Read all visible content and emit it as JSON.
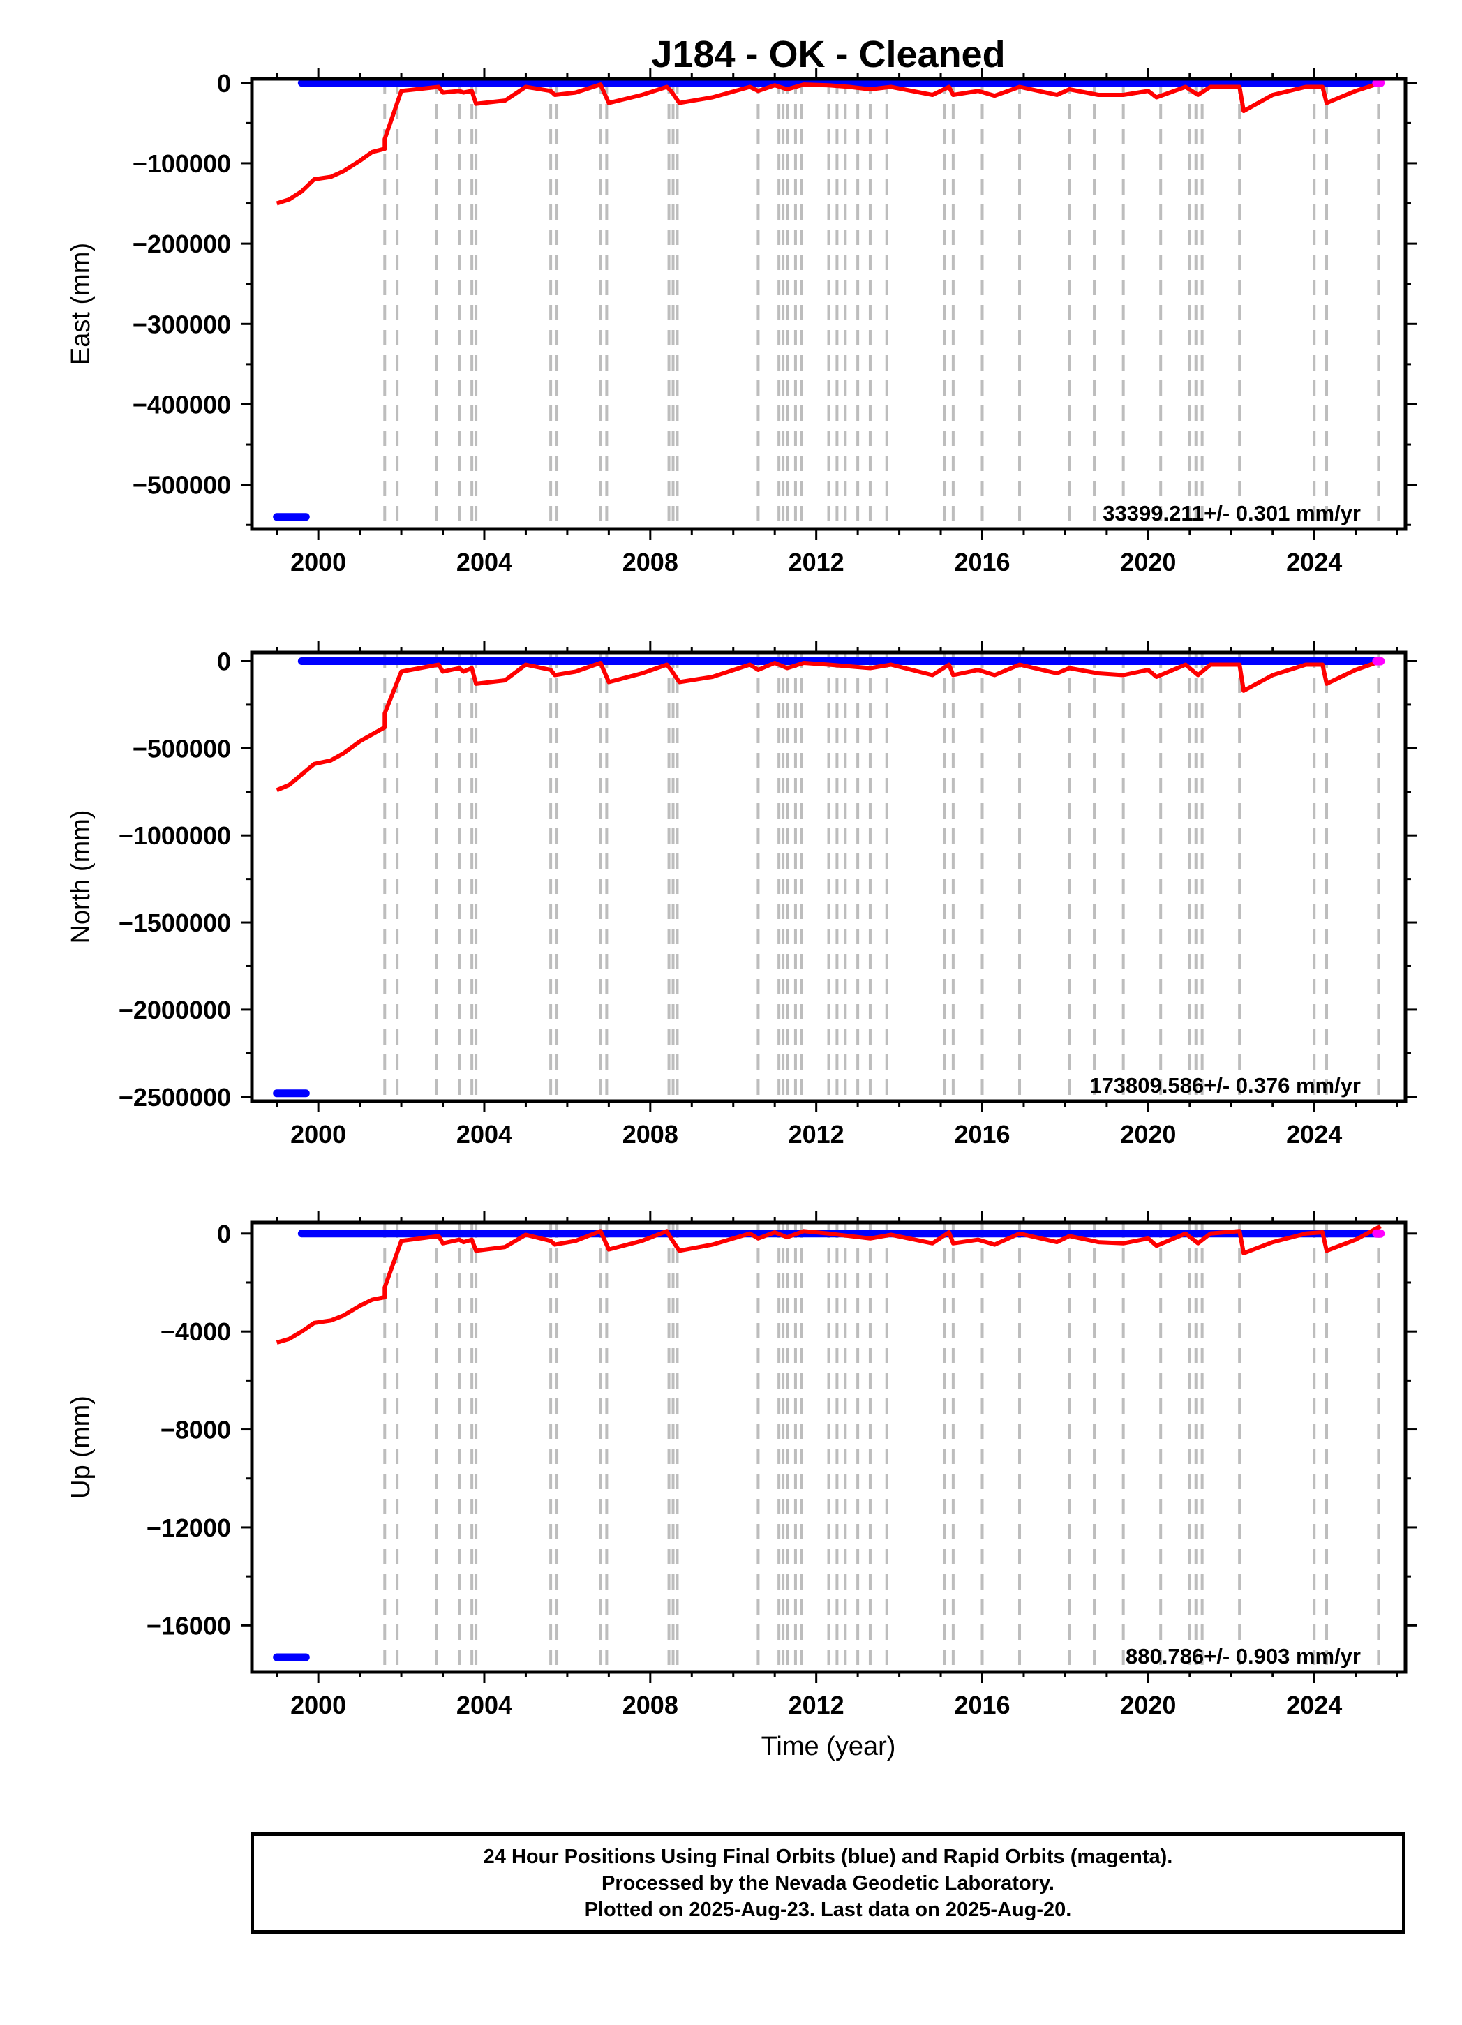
{
  "title": "J184  - OK - Cleaned",
  "x_axis_label": "Time (year)",
  "caption": [
    "24 Hour Positions Using Final Orbits (blue) and Rapid Orbits (magenta).",
    "Processed by the Nevada Geodetic Laboratory.",
    "Plotted on 2025-Aug-23. Last data on 2025-Aug-20."
  ],
  "colors": {
    "final_orbits": "#0000ff",
    "rapid_orbits": "#ff00ff",
    "model_fit": "#ff0000",
    "equipment_change_lines": "#bdbdbd"
  },
  "chart_data": [
    {
      "type": "line",
      "panel": "East",
      "ylabel": "East (mm)",
      "xlim": [
        1998.4,
        2026.2
      ],
      "ylim": [
        -555000,
        5000
      ],
      "xticks": [
        2000,
        2004,
        2008,
        2012,
        2016,
        2020,
        2024
      ],
      "yticks": [
        0,
        -100000,
        -200000,
        -300000,
        -400000,
        -500000
      ],
      "ytick_labels": [
        "0",
        "−100000",
        "−200000",
        "−300000",
        "−400000",
        "−500000"
      ],
      "annotation": "33399.211+/- 0.301 mm/yr",
      "final_segments": [
        {
          "x": [
            1999.0,
            1999.7
          ],
          "y": [
            -540000,
            -540000
          ]
        },
        {
          "x": [
            1999.6,
            2025.45
          ],
          "y": [
            0,
            0
          ]
        }
      ],
      "rapid_points": {
        "x": [
          2025.5,
          2025.55,
          2025.6
        ],
        "y": [
          0,
          0,
          0
        ]
      },
      "model_fit": {
        "x": [
          1999.0,
          1999.3,
          1999.6,
          1999.9,
          2000.3,
          2000.6,
          2001.0,
          2001.3,
          2001.6,
          2001.6,
          2002.0,
          2002.9,
          2003.0,
          2003.4,
          2003.5,
          2003.7,
          2003.8,
          2004.5,
          2005.0,
          2005.6,
          2005.7,
          2006.2,
          2006.8,
          2007.0,
          2007.8,
          2008.4,
          2008.5,
          2008.7,
          2009.5,
          2010.4,
          2010.6,
          2011.0,
          2011.3,
          2011.7,
          2012.3,
          2012.8,
          2013.3,
          2013.8,
          2014.8,
          2015.2,
          2015.3,
          2015.9,
          2016.3,
          2016.9,
          2017.8,
          2018.1,
          2018.8,
          2019.4,
          2020.0,
          2020.2,
          2020.9,
          2021.2,
          2021.5,
          2022.2,
          2022.3,
          2023.0,
          2023.8,
          2024.2,
          2024.3,
          2025.0,
          2025.6
        ],
        "y": [
          -150000,
          -145000,
          -135000,
          -120000,
          -117000,
          -110000,
          -97000,
          -86000,
          -82000,
          -70000,
          -10000,
          -5000,
          -12000,
          -10000,
          -12000,
          -10000,
          -26000,
          -22000,
          -5000,
          -10000,
          -15000,
          -12000,
          -2000,
          -25000,
          -15000,
          -5000,
          -10000,
          -25000,
          -18000,
          -5000,
          -10000,
          -3000,
          -8000,
          -2000,
          -3000,
          -5000,
          -8000,
          -5000,
          -15000,
          -5000,
          -15000,
          -10000,
          -16000,
          -5000,
          -15000,
          -8000,
          -15000,
          -15000,
          -10000,
          -18000,
          -5000,
          -15000,
          -5000,
          -5000,
          -35000,
          -15000,
          -5000,
          -5000,
          -25000,
          -10000,
          0
        ]
      },
      "equipment_change_years": [
        2001.6,
        2001.9,
        2002.85,
        2003.4,
        2003.7,
        2003.8,
        2005.6,
        2005.75,
        2006.8,
        2006.95,
        2008.45,
        2008.55,
        2008.65,
        2010.6,
        2011.1,
        2011.2,
        2011.3,
        2011.5,
        2011.65,
        2012.3,
        2012.5,
        2012.7,
        2013.0,
        2013.3,
        2013.7,
        2015.1,
        2015.3,
        2016.0,
        2016.9,
        2018.1,
        2018.7,
        2019.4,
        2020.3,
        2021.0,
        2021.15,
        2021.3,
        2022.2,
        2024.0,
        2024.3,
        2025.55
      ]
    },
    {
      "type": "line",
      "panel": "North",
      "ylabel": "North (mm)",
      "xlim": [
        1998.4,
        2026.2
      ],
      "ylim": [
        -2525000,
        50000
      ],
      "xticks": [
        2000,
        2004,
        2008,
        2012,
        2016,
        2020,
        2024
      ],
      "yticks": [
        0,
        -500000,
        -1000000,
        -1500000,
        -2000000,
        -2500000
      ],
      "ytick_labels": [
        "0",
        "−500000",
        "−1000000",
        "−1500000",
        "−2000000",
        "−2500000"
      ],
      "annotation": "173809.586+/- 0.376 mm/yr",
      "final_segments": [
        {
          "x": [
            1999.0,
            1999.7
          ],
          "y": [
            -2480000,
            -2480000
          ]
        },
        {
          "x": [
            1999.6,
            2025.45
          ],
          "y": [
            0,
            0
          ]
        }
      ],
      "rapid_points": {
        "x": [
          2025.5,
          2025.55,
          2025.6
        ],
        "y": [
          0,
          0,
          0
        ]
      },
      "model_fit": {
        "x": [
          1999.0,
          1999.3,
          1999.6,
          1999.9,
          2000.3,
          2000.6,
          2001.0,
          2001.3,
          2001.6,
          2001.6,
          2002.0,
          2002.9,
          2003.0,
          2003.4,
          2003.5,
          2003.7,
          2003.8,
          2004.5,
          2005.0,
          2005.6,
          2005.7,
          2006.2,
          2006.8,
          2007.0,
          2007.8,
          2008.4,
          2008.5,
          2008.7,
          2009.5,
          2010.4,
          2010.6,
          2011.0,
          2011.3,
          2011.7,
          2012.3,
          2012.8,
          2013.3,
          2013.8,
          2014.8,
          2015.2,
          2015.3,
          2015.9,
          2016.3,
          2016.9,
          2017.8,
          2018.1,
          2018.8,
          2019.4,
          2020.0,
          2020.2,
          2020.9,
          2021.2,
          2021.5,
          2022.2,
          2022.3,
          2023.0,
          2023.8,
          2024.2,
          2024.3,
          2025.0,
          2025.6
        ],
        "y": [
          -740000,
          -710000,
          -650000,
          -590000,
          -570000,
          -530000,
          -460000,
          -420000,
          -380000,
          -300000,
          -60000,
          -20000,
          -60000,
          -40000,
          -60000,
          -40000,
          -130000,
          -110000,
          -20000,
          -50000,
          -80000,
          -60000,
          -10000,
          -120000,
          -70000,
          -20000,
          -50000,
          -120000,
          -90000,
          -20000,
          -50000,
          -10000,
          -40000,
          -10000,
          -20000,
          -30000,
          -40000,
          -20000,
          -80000,
          -20000,
          -80000,
          -50000,
          -80000,
          -20000,
          -70000,
          -40000,
          -70000,
          -80000,
          -50000,
          -90000,
          -20000,
          -80000,
          -20000,
          -20000,
          -170000,
          -80000,
          -20000,
          -20000,
          -130000,
          -50000,
          0
        ]
      },
      "equipment_change_years": [
        2001.6,
        2001.9,
        2002.85,
        2003.4,
        2003.7,
        2003.8,
        2005.6,
        2005.75,
        2006.8,
        2006.95,
        2008.45,
        2008.55,
        2008.65,
        2010.6,
        2011.1,
        2011.2,
        2011.3,
        2011.5,
        2011.65,
        2012.3,
        2012.5,
        2012.7,
        2013.0,
        2013.3,
        2013.7,
        2015.1,
        2015.3,
        2016.0,
        2016.9,
        2018.1,
        2018.7,
        2019.4,
        2020.3,
        2021.0,
        2021.15,
        2021.3,
        2022.2,
        2024.0,
        2024.3,
        2025.55
      ]
    },
    {
      "type": "line",
      "panel": "Up",
      "ylabel": "Up (mm)",
      "xlim": [
        1998.4,
        2026.2
      ],
      "ylim": [
        -17900,
        450
      ],
      "xticks": [
        2000,
        2004,
        2008,
        2012,
        2016,
        2020,
        2024
      ],
      "yticks": [
        0,
        -4000,
        -8000,
        -12000,
        -16000
      ],
      "ytick_labels": [
        "0",
        "−4000",
        "−8000",
        "−12000",
        "−16000"
      ],
      "annotation": "880.786+/- 0.903 mm/yr",
      "final_segments": [
        {
          "x": [
            1999.0,
            1999.7
          ],
          "y": [
            -17300,
            -17300
          ]
        },
        {
          "x": [
            1999.6,
            2025.45
          ],
          "y": [
            0,
            0
          ]
        }
      ],
      "rapid_points": {
        "x": [
          2025.5,
          2025.55,
          2025.6
        ],
        "y": [
          0,
          0,
          0
        ]
      },
      "model_fit": {
        "x": [
          1999.0,
          1999.3,
          1999.6,
          1999.9,
          2000.3,
          2000.6,
          2001.0,
          2001.3,
          2001.6,
          2001.6,
          2002.0,
          2002.9,
          2003.0,
          2003.4,
          2003.5,
          2003.7,
          2003.8,
          2004.5,
          2005.0,
          2005.6,
          2005.7,
          2006.2,
          2006.8,
          2007.0,
          2007.8,
          2008.4,
          2008.5,
          2008.7,
          2009.5,
          2010.4,
          2010.6,
          2011.0,
          2011.3,
          2011.7,
          2012.3,
          2012.8,
          2013.3,
          2013.8,
          2014.8,
          2015.2,
          2015.3,
          2015.9,
          2016.3,
          2016.9,
          2017.8,
          2018.1,
          2018.8,
          2019.4,
          2020.0,
          2020.2,
          2020.9,
          2021.2,
          2021.5,
          2022.2,
          2022.3,
          2023.0,
          2023.8,
          2024.2,
          2024.3,
          2025.0,
          2025.6
        ],
        "y": [
          -4450,
          -4300,
          -4000,
          -3650,
          -3550,
          -3350,
          -2950,
          -2700,
          -2600,
          -2200,
          -300,
          -100,
          -400,
          -250,
          -350,
          -250,
          -700,
          -550,
          -50,
          -300,
          -450,
          -300,
          100,
          -650,
          -300,
          100,
          -200,
          -700,
          -450,
          0,
          -200,
          50,
          -150,
          100,
          0,
          -100,
          -200,
          -50,
          -400,
          50,
          -400,
          -250,
          -450,
          0,
          -350,
          -100,
          -350,
          -400,
          -200,
          -500,
          0,
          -400,
          0,
          100,
          -800,
          -350,
          0,
          50,
          -700,
          -250,
          300
        ]
      },
      "equipment_change_years": [
        2001.6,
        2001.9,
        2002.85,
        2003.4,
        2003.7,
        2003.8,
        2005.6,
        2005.75,
        2006.8,
        2006.95,
        2008.45,
        2008.55,
        2008.65,
        2010.6,
        2011.1,
        2011.2,
        2011.3,
        2011.5,
        2011.65,
        2012.3,
        2012.5,
        2012.7,
        2013.0,
        2013.3,
        2013.7,
        2015.1,
        2015.3,
        2016.0,
        2016.9,
        2018.1,
        2018.7,
        2019.4,
        2020.3,
        2021.0,
        2021.15,
        2021.3,
        2022.2,
        2024.0,
        2024.3,
        2025.55
      ]
    }
  ]
}
